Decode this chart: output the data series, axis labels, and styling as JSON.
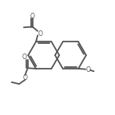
{
  "bg_color": "#ffffff",
  "line_color": "#555555",
  "lw": 1.3,
  "figsize": [
    1.44,
    1.44
  ],
  "dpi": 100,
  "xlim": [
    0,
    10
  ],
  "ylim": [
    0,
    10
  ]
}
